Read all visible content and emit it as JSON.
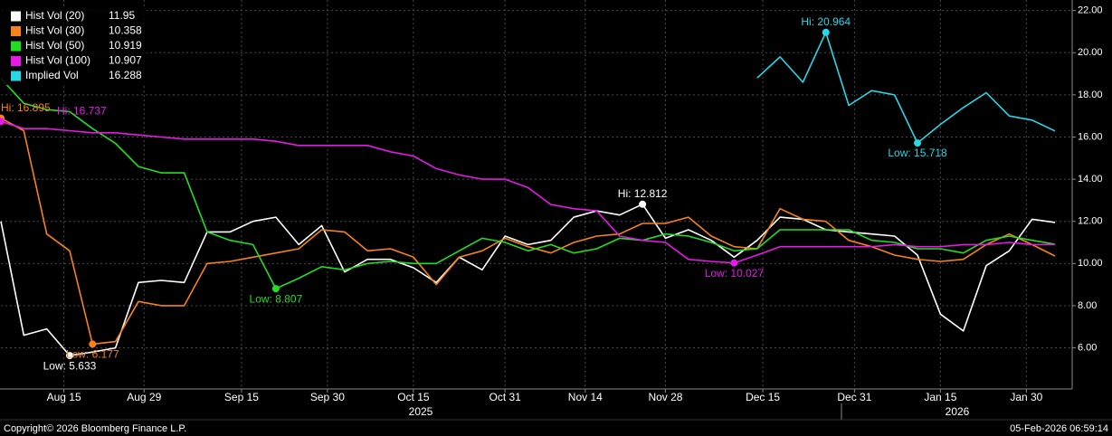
{
  "chart_data": {
    "type": "line",
    "x": [
      "2025-08-04",
      "2025-08-08",
      "2025-08-12",
      "2025-08-16",
      "2025-08-20",
      "2025-08-24",
      "2025-08-28",
      "2025-09-01",
      "2025-09-05",
      "2025-09-09",
      "2025-09-13",
      "2025-09-17",
      "2025-09-21",
      "2025-09-25",
      "2025-09-29",
      "2025-10-03",
      "2025-10-07",
      "2025-10-11",
      "2025-10-15",
      "2025-10-19",
      "2025-10-23",
      "2025-10-27",
      "2025-10-31",
      "2025-11-04",
      "2025-11-08",
      "2025-11-12",
      "2025-11-16",
      "2025-11-20",
      "2025-11-24",
      "2025-11-28",
      "2025-12-02",
      "2025-12-06",
      "2025-12-10",
      "2025-12-14",
      "2025-12-18",
      "2025-12-22",
      "2025-12-26",
      "2025-12-30",
      "2026-01-03",
      "2026-01-07",
      "2026-01-11",
      "2026-01-15",
      "2026-01-19",
      "2026-01-23",
      "2026-01-27",
      "2026-01-31",
      "2026-02-04"
    ],
    "series": [
      {
        "name": "Hist Vol (20)",
        "color": "#ffffff",
        "values": [
          12.0,
          6.6,
          6.9,
          5.633,
          5.8,
          6.0,
          9.1,
          9.2,
          9.1,
          11.5,
          11.5,
          12.0,
          12.2,
          10.9,
          11.8,
          9.6,
          10.2,
          10.2,
          9.8,
          9.1,
          10.3,
          9.7,
          11.3,
          10.9,
          11.1,
          12.2,
          12.5,
          12.3,
          12.812,
          11.2,
          11.6,
          11.1,
          10.3,
          11.1,
          12.2,
          12.1,
          11.6,
          11.5,
          11.4,
          11.3,
          10.4,
          7.6,
          6.8,
          9.9,
          10.6,
          12.1,
          11.95
        ],
        "value_labels": [
          null,
          null,
          null,
          "Low: 5.633",
          null,
          null,
          null,
          null,
          null,
          null,
          null,
          null,
          null,
          null,
          null,
          null,
          null,
          null,
          null,
          null,
          null,
          null,
          null,
          null,
          null,
          null,
          null,
          null,
          "Hi: 12.812",
          null,
          null,
          null,
          null,
          null,
          null,
          null,
          null,
          null,
          null,
          null,
          null,
          null,
          null,
          null,
          null,
          null,
          null
        ]
      },
      {
        "name": "Hist Vol (30)",
        "color": "#f7821b",
        "values": [
          16.895,
          16.3,
          11.4,
          10.6,
          6.177,
          6.3,
          8.2,
          8.0,
          8.0,
          10.0,
          10.1,
          10.3,
          10.5,
          10.7,
          11.6,
          11.5,
          10.6,
          10.7,
          10.3,
          9.0,
          10.3,
          10.6,
          11.2,
          10.8,
          10.5,
          11.0,
          11.3,
          11.4,
          11.9,
          11.9,
          12.2,
          11.3,
          10.8,
          10.7,
          12.6,
          12.1,
          12.0,
          11.1,
          10.8,
          10.4,
          10.2,
          10.1,
          10.2,
          10.9,
          11.4,
          10.9,
          10.358
        ],
        "value_labels": [
          "Hi: 16.895",
          null,
          null,
          null,
          "Low: 6.177",
          null,
          null,
          null,
          null,
          null,
          null,
          null,
          null,
          null,
          null,
          null,
          null,
          null,
          null,
          null,
          null,
          null,
          null,
          null,
          null,
          null,
          null,
          null,
          null,
          null,
          null,
          null,
          null,
          null,
          null,
          null,
          null,
          null,
          null,
          null,
          null,
          null,
          null,
          null,
          null,
          null,
          null
        ]
      },
      {
        "name": "Hist Vol (50)",
        "color": "#22dd22",
        "values": [
          18.78,
          17.6,
          17.3,
          17.2,
          16.4,
          15.7,
          14.6,
          14.3,
          14.3,
          11.5,
          11.1,
          10.9,
          8.807,
          9.3,
          9.85,
          9.7,
          10.0,
          10.1,
          10.0,
          10.0,
          10.6,
          11.2,
          11.0,
          10.6,
          10.9,
          10.5,
          10.7,
          11.2,
          11.1,
          11.4,
          11.3,
          11.0,
          10.6,
          10.7,
          11.6,
          11.6,
          11.6,
          11.6,
          11.1,
          11.0,
          10.7,
          10.7,
          10.5,
          11.1,
          11.3,
          11.1,
          10.919
        ],
        "value_labels": [
          null,
          null,
          null,
          null,
          null,
          null,
          null,
          null,
          null,
          null,
          null,
          null,
          "Low: 8.807",
          null,
          null,
          null,
          null,
          null,
          null,
          null,
          null,
          null,
          null,
          null,
          null,
          null,
          null,
          null,
          null,
          null,
          null,
          null,
          null,
          null,
          null,
          null,
          null,
          null,
          null,
          null,
          null,
          null,
          null,
          null,
          null,
          null,
          null
        ]
      },
      {
        "name": "Hist Vol (100)",
        "color": "#e619e6",
        "values": [
          16.737,
          16.4,
          16.4,
          16.3,
          16.2,
          16.2,
          16.1,
          16.0,
          15.9,
          15.9,
          15.9,
          15.9,
          15.8,
          15.6,
          15.6,
          15.6,
          15.6,
          15.3,
          15.1,
          14.5,
          14.2,
          14.0,
          14.0,
          13.6,
          12.8,
          12.6,
          12.5,
          11.3,
          11.1,
          11.0,
          10.2,
          10.1,
          10.027,
          10.4,
          10.8,
          10.8,
          10.8,
          10.8,
          10.8,
          10.9,
          10.8,
          10.8,
          10.9,
          10.9,
          11.0,
          10.9,
          10.907
        ],
        "value_labels": [
          "Hi: 16.737",
          null,
          null,
          null,
          null,
          null,
          null,
          null,
          null,
          null,
          null,
          null,
          null,
          null,
          null,
          null,
          null,
          null,
          null,
          null,
          null,
          null,
          null,
          null,
          null,
          null,
          null,
          null,
          null,
          null,
          null,
          null,
          "Low: 10.027",
          null,
          null,
          null,
          null,
          null,
          null,
          null,
          null,
          null,
          null,
          null,
          null,
          null,
          null
        ]
      },
      {
        "name": "Implied Vol",
        "color": "#27d8e8",
        "values": [
          null,
          null,
          null,
          null,
          null,
          null,
          null,
          null,
          null,
          null,
          null,
          null,
          null,
          null,
          null,
          null,
          null,
          null,
          null,
          null,
          null,
          null,
          null,
          null,
          null,
          null,
          null,
          null,
          null,
          null,
          null,
          null,
          null,
          18.8,
          19.8,
          18.6,
          20.964,
          17.5,
          18.2,
          18.0,
          15.718,
          16.6,
          17.4,
          18.1,
          17.0,
          16.8,
          16.288
        ],
        "value_labels": [
          null,
          null,
          null,
          null,
          null,
          null,
          null,
          null,
          null,
          null,
          null,
          null,
          null,
          null,
          null,
          null,
          null,
          null,
          null,
          null,
          null,
          null,
          null,
          null,
          null,
          null,
          null,
          null,
          null,
          null,
          null,
          null,
          null,
          null,
          null,
          null,
          "Hi: 20.964",
          null,
          null,
          null,
          "Low: 15.718",
          null,
          null,
          null,
          null,
          null,
          null
        ]
      }
    ],
    "xlim": [
      "2025-08-04",
      "2026-02-07"
    ],
    "xticks": [
      {
        "value": "2025-08-15",
        "label": "Aug 15"
      },
      {
        "value": "2025-08-29",
        "label": "Aug 29"
      },
      {
        "value": "2025-09-15",
        "label": "Sep 15"
      },
      {
        "value": "2025-09-30",
        "label": "Sep 30"
      },
      {
        "value": "2025-10-15",
        "label": "Oct 15"
      },
      {
        "value": "2025-10-31",
        "label": "Oct 31"
      },
      {
        "value": "2025-11-14",
        "label": "Nov 14"
      },
      {
        "value": "2025-11-28",
        "label": "Nov 28"
      },
      {
        "value": "2025-12-15",
        "label": "Dec 15"
      },
      {
        "value": "2025-12-31",
        "label": "Dec 31"
      },
      {
        "value": "2026-01-15",
        "label": "Jan 15"
      },
      {
        "value": "2026-01-30",
        "label": "Jan 30"
      }
    ],
    "year_labels": [
      "2025",
      "2026"
    ],
    "ylim": [
      4.05,
      22.5
    ],
    "yticks": [
      {
        "value": 6,
        "label": "6.00"
      },
      {
        "value": 8,
        "label": "8.00"
      },
      {
        "value": 10,
        "label": "10.00"
      },
      {
        "value": 12,
        "label": "12.00"
      },
      {
        "value": 14,
        "label": "14.00"
      },
      {
        "value": 16,
        "label": "16.00"
      },
      {
        "value": 18,
        "label": "18.00"
      },
      {
        "value": 20,
        "label": "20.00"
      },
      {
        "value": 22,
        "label": "22.00"
      }
    ],
    "grid": true,
    "legend": "top-left"
  },
  "footer": {
    "copyright": "Copyright© 2026 Bloomberg Finance L.P.",
    "timestamp": "05-Feb-2026 06:59:14"
  }
}
